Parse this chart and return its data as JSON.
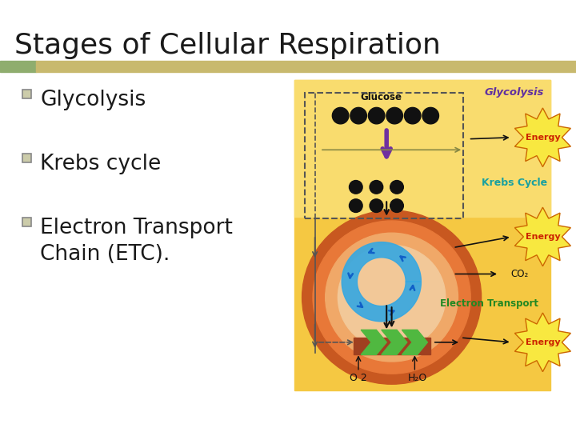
{
  "title": "Stages of Cellular Respiration",
  "bullet_points": [
    "Glycolysis",
    "Krebs cycle",
    "Electron Transport\nChain (ETC)."
  ],
  "title_fontsize": 26,
  "bullet_fontsize": 19,
  "bg_color": "#ffffff",
  "title_bar_color1": "#8fad6e",
  "title_bar_color2": "#c8b96e",
  "diag_bg": "#f5c842",
  "diag_top_bg": "#f9dc6e",
  "diag_mid_bg": "#f5c842",
  "diag_bot_bg": "#f5c842",
  "mito_outer": "#c85820",
  "mito_mid": "#e87838",
  "mito_inner": "#f0a868",
  "mito_matrix": "#f2c898",
  "krebs_blue": "#38a8e0",
  "glucose_color": "#111111",
  "glycolysis_label_color": "#6030a0",
  "krebs_label_color": "#18a0a0",
  "etc_label_color": "#228822",
  "energy_bg": "#f8e840",
  "energy_text": "#cc2200",
  "energy_border": "#cc6600",
  "arrow_dark": "#111111",
  "arrow_purple": "#7030a0",
  "dashed_color": "#555555",
  "co2_color": "#111111"
}
